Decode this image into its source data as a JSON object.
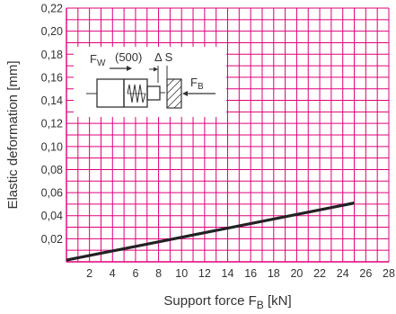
{
  "chart_data": {
    "type": "line",
    "xlabel": "Support force F",
    "xlabel_sub": "B",
    "xlabel_unit": "[kN]",
    "ylabel": "Elastic deformation [mm]",
    "xlim": [
      0,
      28
    ],
    "ylim": [
      0,
      0.22
    ],
    "x_ticks": [
      2,
      4,
      6,
      8,
      10,
      12,
      14,
      16,
      18,
      20,
      22,
      24,
      26,
      28
    ],
    "x_tick_labels": [
      "2",
      "4",
      "6",
      "8",
      "10",
      "12",
      "14",
      "16",
      "18",
      "20",
      "22",
      "24",
      "26",
      "28"
    ],
    "y_ticks": [
      0.02,
      0.04,
      0.06,
      0.08,
      0.1,
      0.12,
      0.14,
      0.16,
      0.18,
      0.2,
      0.22
    ],
    "y_tick_labels": [
      "0,02",
      "0,04",
      "0,06",
      "0,08",
      "0,10",
      "0,12",
      "0,14",
      "0,16",
      "0,18",
      "0,20",
      "0,22"
    ],
    "grid": true,
    "grid_color": "#e0007a",
    "line_color": "#222222",
    "series": [
      {
        "x": [
          0,
          25
        ],
        "y": [
          0.0015,
          0.051
        ]
      }
    ],
    "inset": {
      "fw_label": "F",
      "fw_sub": "W",
      "fw_value": "(500)",
      "delta_label": "Δ S",
      "fb_label": "F",
      "fb_sub": "B"
    }
  }
}
